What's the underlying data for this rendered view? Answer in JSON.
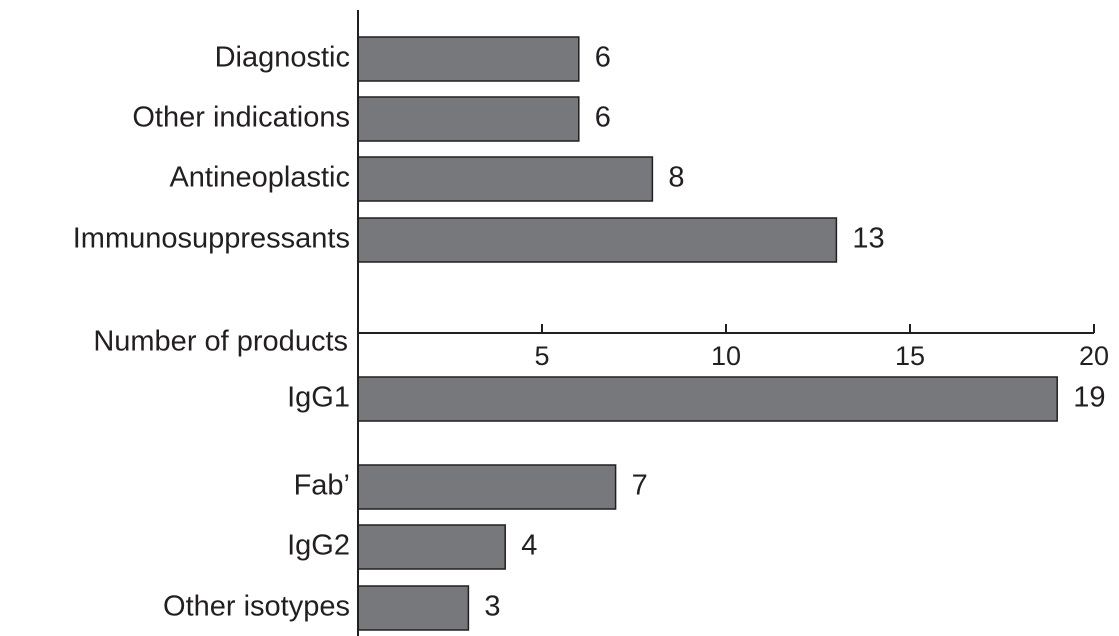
{
  "chart_data": {
    "type": "bar",
    "orientation": "horizontal",
    "xlabel": "Number of products",
    "xlim": [
      0,
      20
    ],
    "xticks": [
      5,
      10,
      15,
      20
    ],
    "grid": false,
    "bar_color": "#77787b",
    "groups": [
      {
        "position": "above-axis",
        "categories": [
          "Diagnostic",
          "Other indications",
          "Antineoplastic",
          "Immunosuppressants"
        ],
        "values": [
          6,
          6,
          8,
          13
        ]
      },
      {
        "position": "below-axis",
        "categories": [
          "IgG1",
          "Fab’",
          "IgG2",
          "Other isotypes"
        ],
        "values": [
          19,
          7,
          4,
          3
        ]
      }
    ]
  }
}
